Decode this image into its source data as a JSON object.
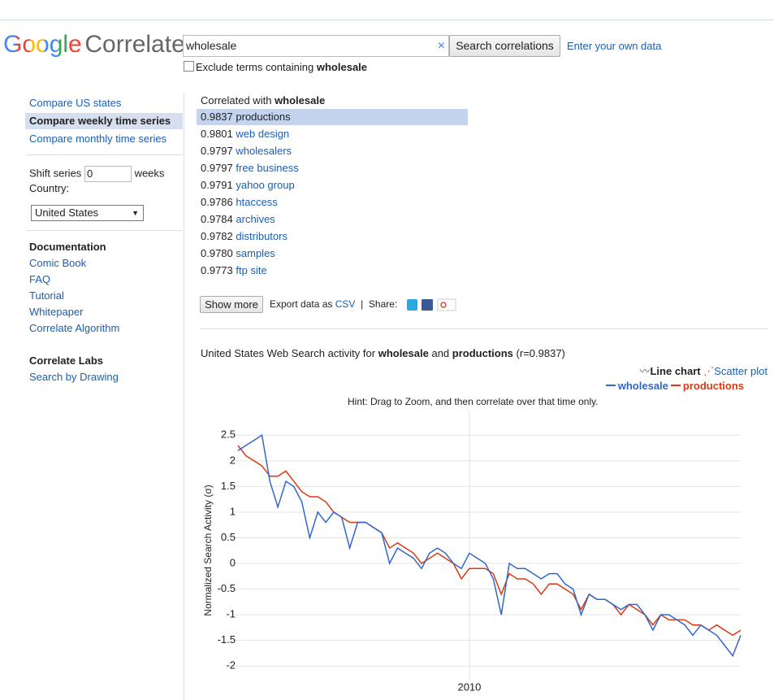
{
  "header": {
    "logo_google": "Google",
    "logo_correlate": "Correlate",
    "search_query": "wholesale",
    "search_button": "Search correlations",
    "own_data_link": "Enter your own data",
    "exclude_label": "Exclude terms containing",
    "exclude_term": "wholesale"
  },
  "sidebar": {
    "nav": [
      "Compare US states",
      "Compare weekly time series",
      "Compare monthly time series"
    ],
    "active_nav": 1,
    "shift_label": "Shift series",
    "shift_value": "0",
    "shift_unit": "weeks",
    "country_label": "Country:",
    "country": "United States",
    "documentation": {
      "heading": "Documentation",
      "links": [
        "Comic Book",
        "FAQ",
        "Tutorial",
        "Whitepaper",
        "Correlate Algorithm"
      ]
    },
    "labs": {
      "heading": "Correlate Labs",
      "links": [
        "Search by Drawing"
      ]
    }
  },
  "results": {
    "heading": "Correlated with",
    "term": "wholesale",
    "selected": 0,
    "items": [
      {
        "score": "0.9837",
        "term": "productions"
      },
      {
        "score": "0.9801",
        "term": "web design"
      },
      {
        "score": "0.9797",
        "term": "wholesalers"
      },
      {
        "score": "0.9797",
        "term": "free business"
      },
      {
        "score": "0.9791",
        "term": "yahoo group"
      },
      {
        "score": "0.9786",
        "term": "htaccess"
      },
      {
        "score": "0.9784",
        "term": "archives"
      },
      {
        "score": "0.9782",
        "term": "distributors"
      },
      {
        "score": "0.9780",
        "term": "samples"
      },
      {
        "score": "0.9773",
        "term": "ftp site"
      }
    ],
    "show_more": "Show more",
    "export_label": "Export data as",
    "export_link": "CSV",
    "separator": "|",
    "share_label": "Share:"
  },
  "chart_heading": {
    "prefix": "United States Web Search activity for",
    "term1": "wholesale",
    "and": "and",
    "term2": "productions",
    "r": "(r=0.9837)"
  },
  "view_options": [
    "Line chart",
    "Scatter plot"
  ],
  "chart_data": {
    "type": "line",
    "hint": "Hint: Drag to Zoom, and then correlate over that time only.",
    "y_label": "Normalized Search Activity (σ)",
    "categories": [
      null,
      null,
      null,
      null,
      null,
      null,
      null,
      null,
      null,
      null,
      null,
      null,
      null,
      null,
      null,
      null,
      null,
      null,
      null,
      null,
      null,
      null,
      null,
      null,
      null,
      null,
      null,
      null,
      null,
      "2010",
      null,
      null,
      null,
      null,
      null,
      null,
      null,
      null,
      null,
      null,
      null,
      null,
      null,
      null,
      null,
      null,
      null,
      null,
      null,
      null,
      null,
      null,
      null,
      null,
      null,
      null,
      null,
      null,
      null,
      null,
      null,
      null,
      null,
      null
    ],
    "series": [
      {
        "name": "wholesale",
        "color": "#3366cc",
        "values": [
          2.2,
          2.3,
          2.4,
          2.5,
          1.6,
          1.1,
          1.6,
          1.5,
          1.2,
          0.5,
          1.0,
          0.8,
          1.0,
          0.9,
          0.3,
          0.8,
          0.8,
          0.7,
          0.6,
          0.0,
          0.3,
          0.2,
          0.1,
          -0.1,
          0.2,
          0.3,
          0.2,
          0.0,
          -0.1,
          0.2,
          0.1,
          0.0,
          -0.3,
          -1.0,
          0.0,
          -0.1,
          -0.1,
          -0.2,
          -0.3,
          -0.2,
          -0.2,
          -0.4,
          -0.5,
          -1.0,
          -0.6,
          -0.7,
          -0.7,
          -0.8,
          -0.9,
          -0.8,
          -0.8,
          -1.0,
          -1.3,
          -1.0,
          -1.0,
          -1.1,
          -1.2,
          -1.4,
          -1.2,
          -1.3,
          -1.4,
          -1.6,
          -1.8,
          -1.4
        ]
      },
      {
        "name": "productions",
        "color": "#dc3912",
        "values": [
          2.3,
          2.1,
          2.0,
          1.9,
          1.7,
          1.7,
          1.8,
          1.6,
          1.4,
          1.3,
          1.3,
          1.2,
          1.0,
          0.9,
          0.8,
          0.8,
          0.8,
          0.7,
          0.6,
          0.3,
          0.4,
          0.3,
          0.2,
          0.0,
          0.1,
          0.2,
          0.1,
          0.0,
          -0.3,
          -0.1,
          -0.1,
          -0.1,
          -0.2,
          -0.6,
          -0.2,
          -0.3,
          -0.3,
          -0.4,
          -0.6,
          -0.4,
          -0.4,
          -0.5,
          -0.6,
          -0.9,
          -0.6,
          -0.7,
          -0.7,
          -0.8,
          -1.0,
          -0.8,
          -0.9,
          -1.0,
          -1.2,
          -1.0,
          -1.1,
          -1.1,
          -1.1,
          -1.2,
          -1.2,
          -1.3,
          -1.2,
          -1.3,
          -1.4,
          -1.3
        ]
      }
    ],
    "ylim": [
      -2.25,
      2.75
    ],
    "yticks": [
      -2,
      -1.5,
      -1,
      -0.5,
      0,
      0.5,
      1,
      1.5,
      2,
      2.5
    ],
    "grid": true
  }
}
